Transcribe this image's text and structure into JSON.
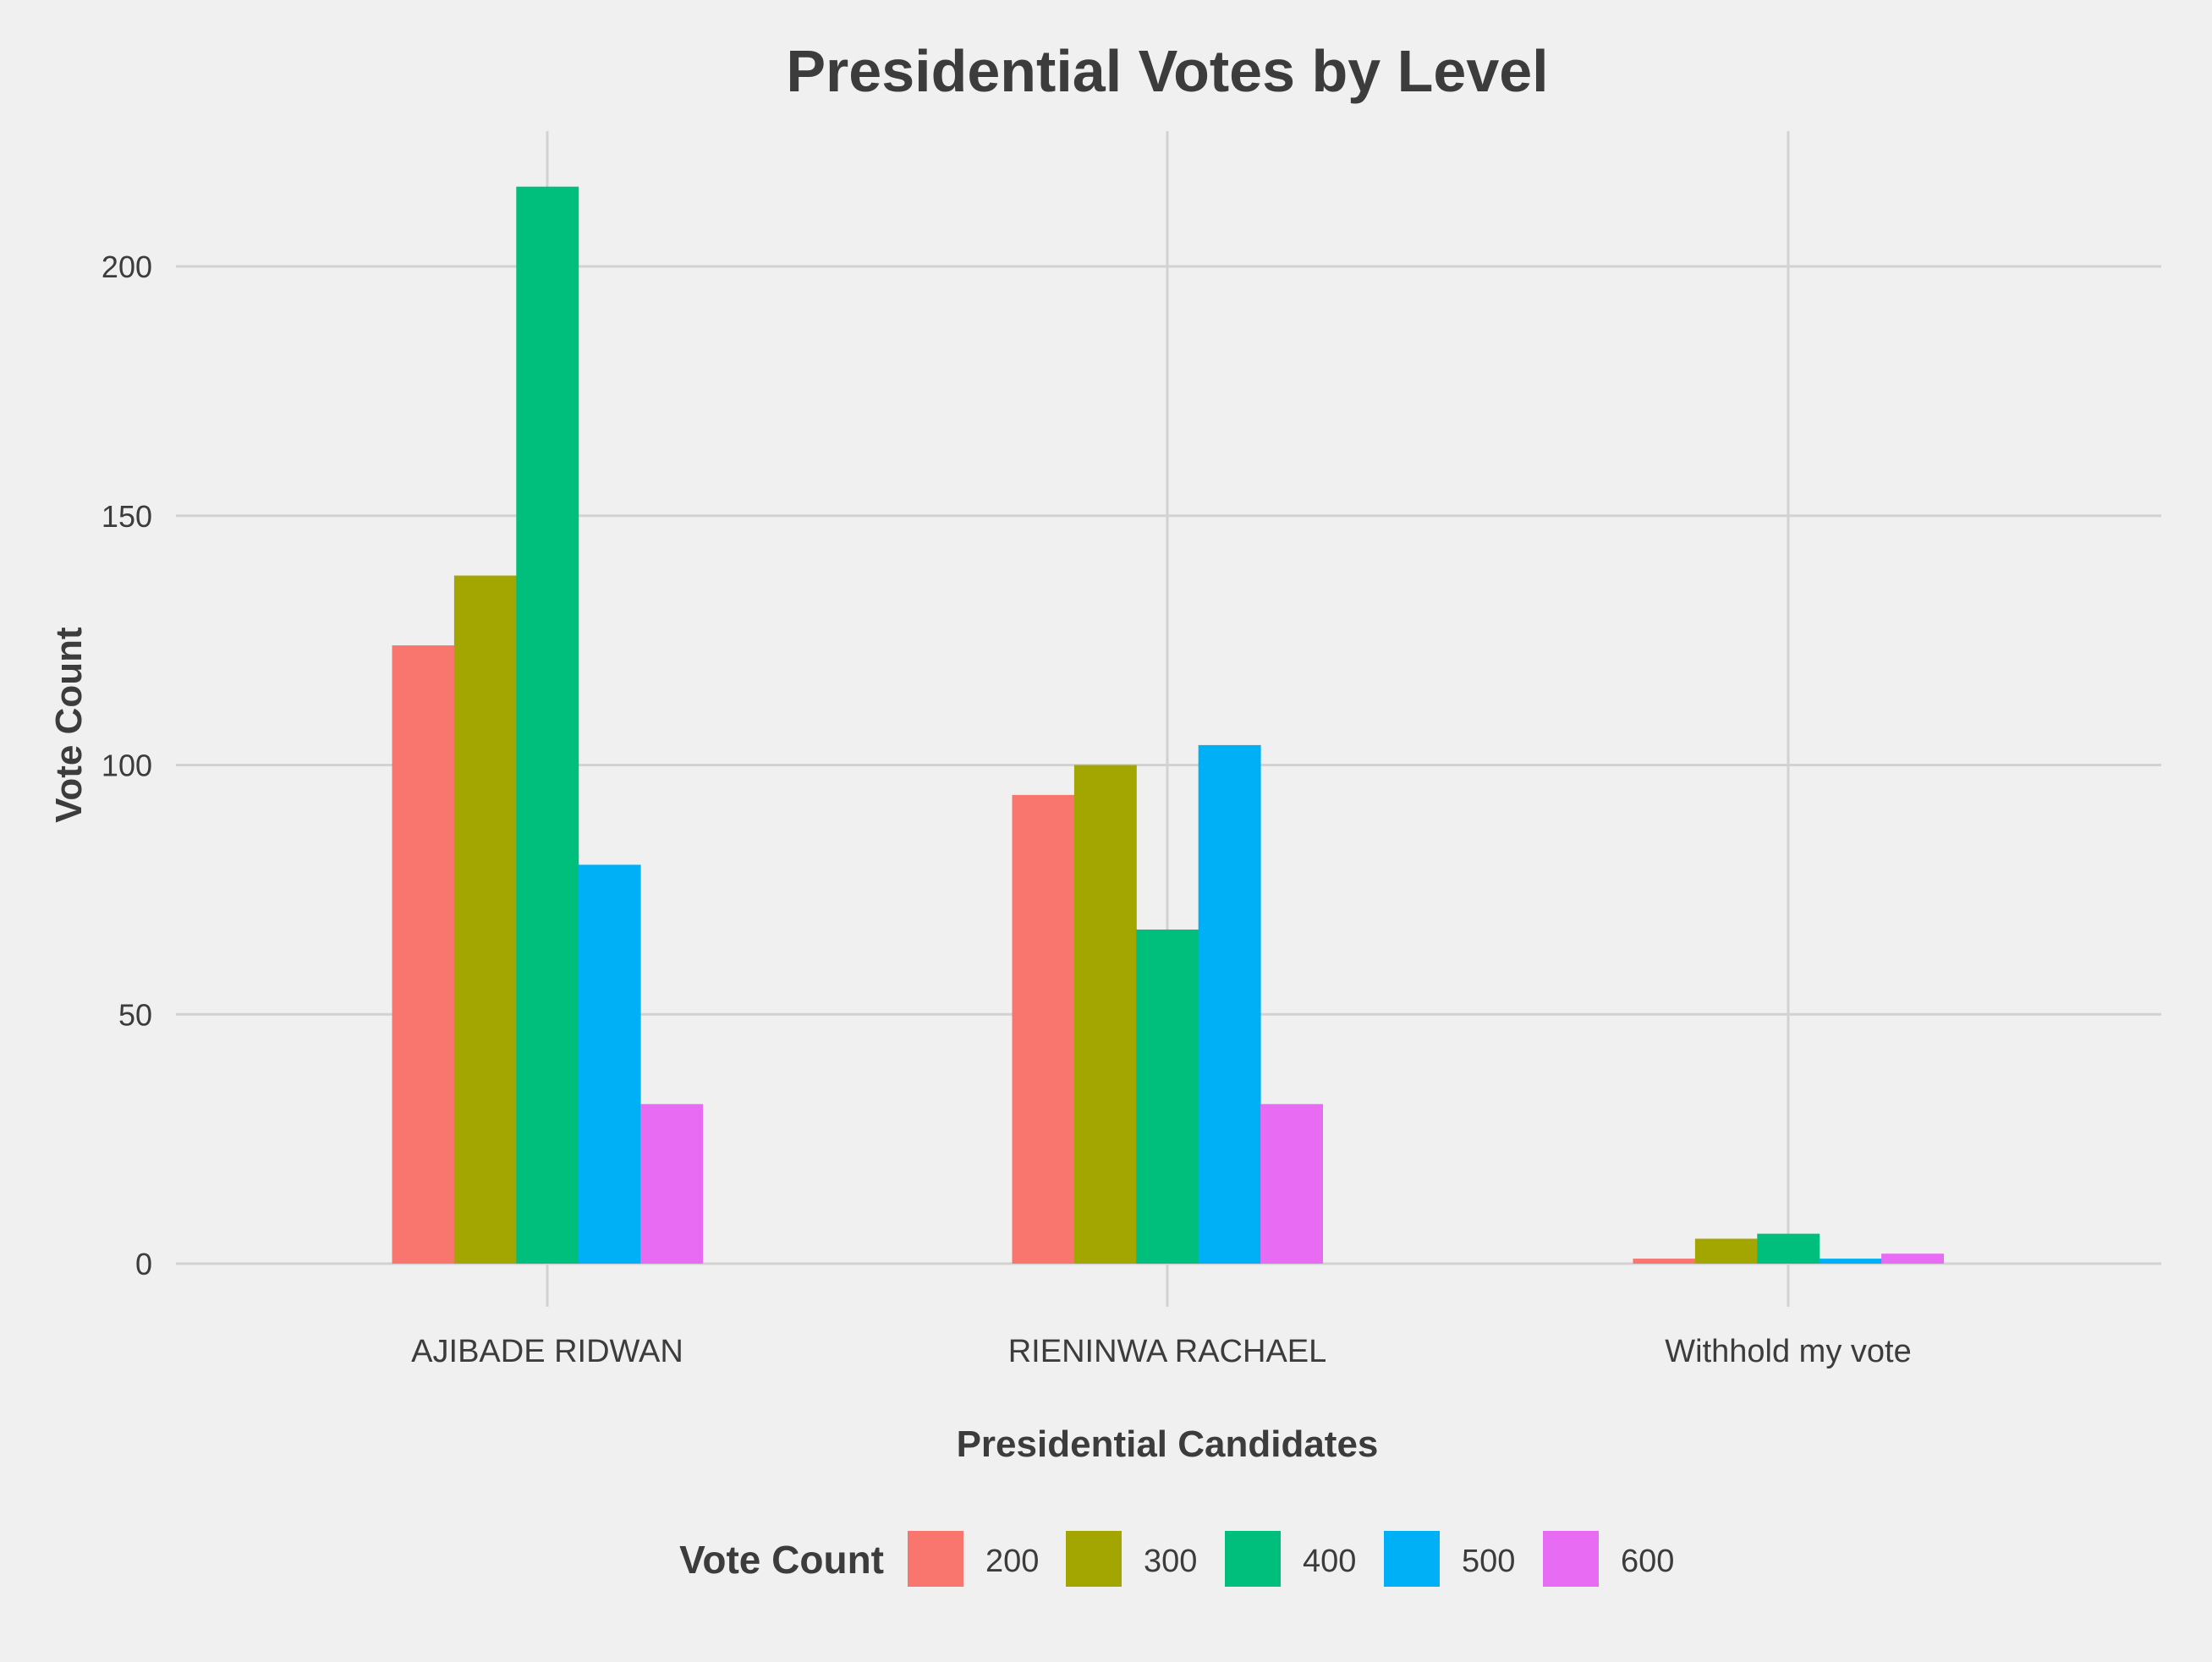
{
  "chart_data": {
    "type": "bar",
    "title": "Presidential Votes by Level",
    "xlabel": "Presidential Candidates",
    "ylabel": "Vote Count",
    "categories": [
      "AJIBADE RIDWAN",
      "RIENINWA RACHAEL",
      "Withhold my vote"
    ],
    "yticks": [
      "0",
      "50",
      "100",
      "150",
      "200"
    ],
    "ylim": [
      0,
      226
    ],
    "grid": true,
    "legend": {
      "title": "Vote Count",
      "position": "bottom"
    },
    "series": [
      {
        "name": "200",
        "color": "#F8766D",
        "values": [
          124,
          94,
          1
        ]
      },
      {
        "name": "300",
        "color": "#A3A500",
        "values": [
          138,
          100,
          5
        ]
      },
      {
        "name": "400",
        "color": "#00BF7D",
        "values": [
          216,
          67,
          6
        ]
      },
      {
        "name": "500",
        "color": "#00B0F6",
        "values": [
          80,
          104,
          1
        ]
      },
      {
        "name": "600",
        "color": "#E76BF3",
        "values": [
          32,
          32,
          2
        ]
      }
    ]
  },
  "style": {
    "background": "#f0f0f0",
    "grid_color": "#d2d2d2",
    "text_color": "#3c3c3c"
  }
}
